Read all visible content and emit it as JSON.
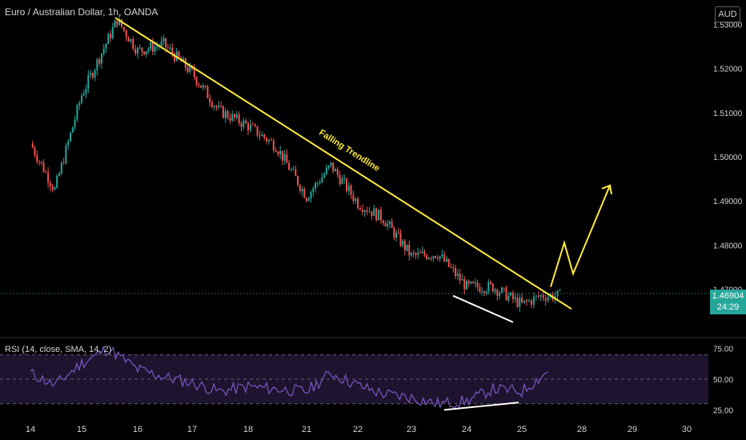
{
  "header": {
    "title": "Euro / Australian Dollar, 1h, OANDA",
    "currency": "AUD"
  },
  "last_price": {
    "value": "1.46904",
    "countdown": "24:29"
  },
  "rsi_label": "RSI (14, close, SMA, 14, 2)",
  "annotation_text": "Falling Trendline",
  "colors": {
    "up": "#26a69a",
    "down": "#ef5350",
    "trendline": "#ffeb3b",
    "rsi_line": "#7e57c2",
    "rsi_band": "#1e1430",
    "divergence": "#ffffff"
  },
  "chart_data": [
    {
      "type": "candlestick",
      "title": "Euro / Australian Dollar, 1h, OANDA",
      "ylabel": "AUD",
      "ylim": [
        1.463,
        1.533
      ],
      "yticks": [
        "1.53000",
        "1.52000",
        "1.51000",
        "1.50000",
        "1.49000",
        "1.48000",
        "1.47000"
      ],
      "x_ticks": [
        "14",
        "15",
        "16",
        "17",
        "18",
        "21",
        "22",
        "23",
        "24",
        "25",
        "28",
        "29",
        "30"
      ],
      "price_path": [
        [
          "14",
          1.503
        ],
        [
          "14",
          1.4925
        ],
        [
          "15",
          1.514
        ],
        [
          "15",
          1.5225
        ],
        [
          "15",
          1.531
        ],
        [
          "16",
          1.524
        ],
        [
          "16",
          1.5255
        ],
        [
          "17",
          1.519
        ],
        [
          "17",
          1.5105
        ],
        [
          "18",
          1.507
        ],
        [
          "18",
          1.5025
        ],
        [
          "21",
          1.491
        ],
        [
          "21",
          1.498
        ],
        [
          "22",
          1.4895
        ],
        [
          "22",
          1.486
        ],
        [
          "23",
          1.4775
        ],
        [
          "23",
          1.478
        ],
        [
          "24",
          1.4705
        ],
        [
          "24",
          1.4705
        ],
        [
          "25",
          1.4665
        ],
        [
          "25",
          1.4685
        ],
        [
          "25",
          1.4685
        ]
      ],
      "last_price": 1.46904,
      "trendline": {
        "label": "Falling Trendline",
        "from": [
          "15",
          1.5315
        ],
        "to": [
          "28",
          1.4655
        ]
      },
      "projection": [
        [
          "25",
          1.4705
        ],
        [
          "28",
          1.4805
        ],
        [
          "28",
          1.4735
        ],
        [
          "28",
          1.4935
        ]
      ],
      "support_line": {
        "from": [
          "23",
          1.4685
        ],
        "to": [
          "25",
          1.4625
        ]
      }
    },
    {
      "type": "line",
      "title": "RSI (14, close, SMA, 14, 2)",
      "ylim": [
        20,
        80
      ],
      "yticks": [
        "75.00",
        "50.00",
        "25.00"
      ],
      "levels": [
        70,
        50,
        30
      ],
      "rsi_path": [
        [
          "14",
          55
        ],
        [
          "14",
          45
        ],
        [
          "15",
          63
        ],
        [
          "15",
          75
        ],
        [
          "16",
          58
        ],
        [
          "16",
          52
        ],
        [
          "17",
          47
        ],
        [
          "17",
          40
        ],
        [
          "18",
          44
        ],
        [
          "18",
          42
        ],
        [
          "21",
          40
        ],
        [
          "21",
          55
        ],
        [
          "22",
          45
        ],
        [
          "22",
          38
        ],
        [
          "23",
          35
        ],
        [
          "23",
          30
        ],
        [
          "24",
          32
        ],
        [
          "24",
          42
        ],
        [
          "25",
          40
        ],
        [
          "25",
          58
        ]
      ],
      "divergence_line": {
        "from": [
          "23",
          25
        ],
        "to": [
          "25",
          31
        ]
      }
    }
  ]
}
